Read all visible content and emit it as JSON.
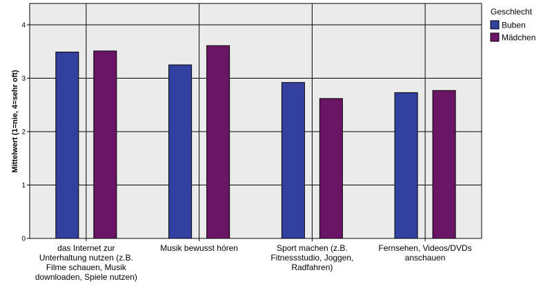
{
  "chart_data": {
    "type": "bar",
    "categories": [
      "das Internet zur Unterhaltung nutzen (z.B. Filme schauen, Musik downloaden, Spiele nutzen)",
      "Musik bewusst hören",
      "Sport machen (z.B. Fitnessstudio, Joggen, Radfahren)",
      "Fernsehen, Videos/DVDs anschauen"
    ],
    "category_lines": [
      [
        "das Internet zur",
        "Unterhaltung nutzen (z.B.",
        "Filme schauen, Musik",
        "downloaden, Spiele nutzen)"
      ],
      [
        "Musik bewusst hören"
      ],
      [
        "Sport machen (z.B.",
        "Fitnessstudio, Joggen,",
        "Radfahren)"
      ],
      [
        "Fernsehen, Videos/DVDs",
        "anschauen"
      ]
    ],
    "series": [
      {
        "name": "Buben",
        "values": [
          3.49,
          3.25,
          2.92,
          2.73
        ],
        "color": "#3340a0"
      },
      {
        "name": "Mädchen",
        "values": [
          3.51,
          3.61,
          2.62,
          2.77
        ],
        "color": "#6b1566"
      }
    ],
    "ylabel": "Mittelwert (1=nie, 4=sehr oft)",
    "xlabel": "",
    "ylim": [
      0,
      4.4
    ],
    "yticks": [
      0,
      1,
      2,
      3,
      4
    ],
    "grid": true,
    "legend": {
      "title": "Geschlecht",
      "position": "top-right"
    }
  }
}
